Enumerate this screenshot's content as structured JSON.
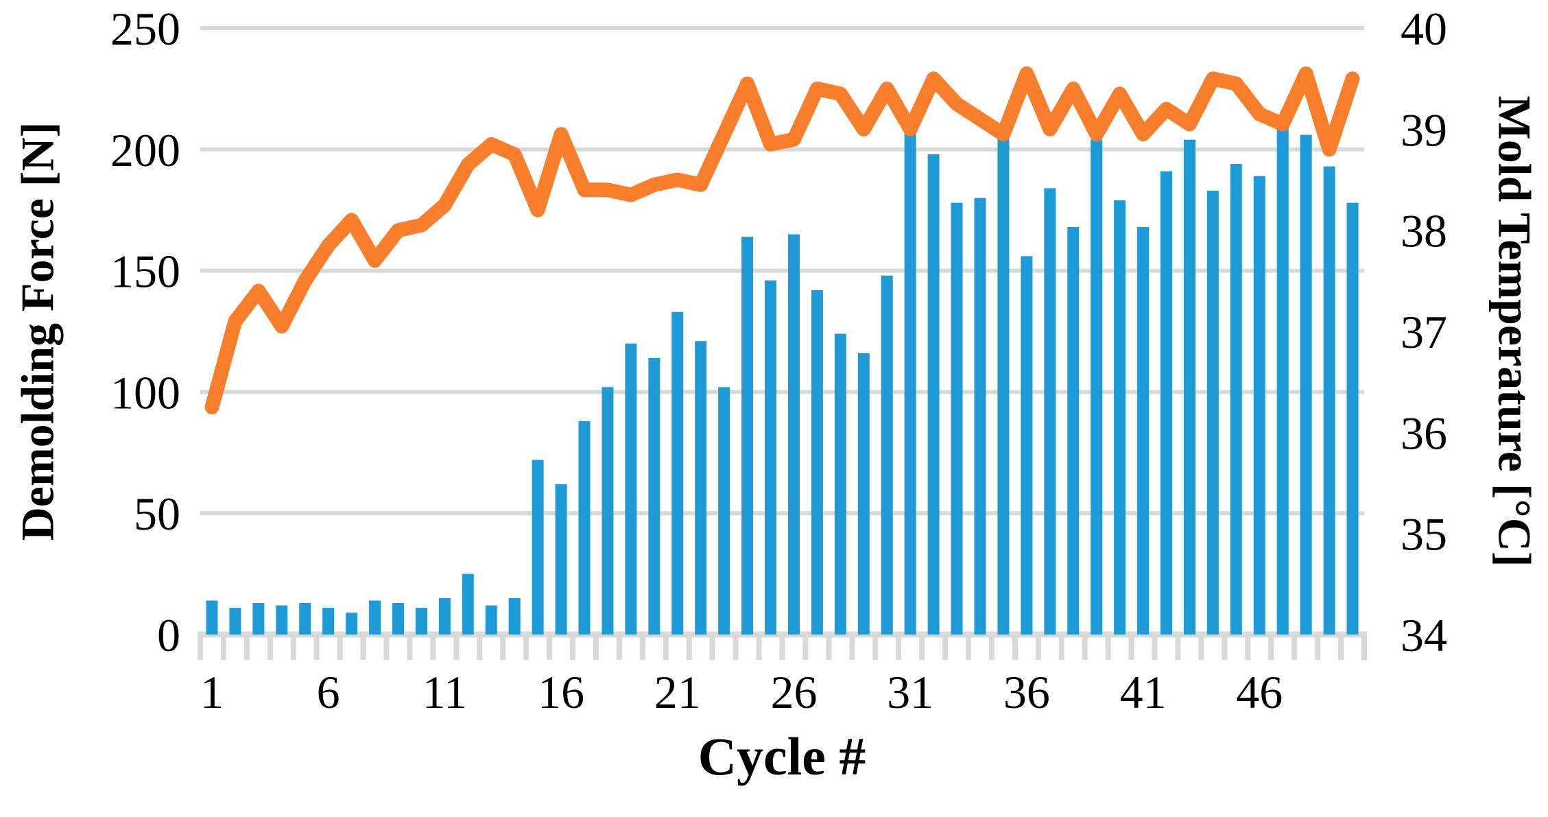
{
  "chart_data": {
    "type": "bar",
    "subtype": "combo-bar-line-dual-axis",
    "title": "",
    "xlabel": "Cycle #",
    "ylabel_left": "Demolding Force [N]",
    "ylabel_right": "Mold Temperature [°C]",
    "x_tick_labels": [
      1,
      6,
      11,
      16,
      21,
      26,
      31,
      36,
      41,
      46
    ],
    "left_axis_ticks": [
      250,
      200,
      150,
      100,
      50,
      0
    ],
    "right_axis_ticks": [
      40,
      39,
      38,
      37,
      36,
      35,
      34
    ],
    "left_axis_range": [
      0,
      250
    ],
    "right_axis_range": [
      34,
      40
    ],
    "grid": "horizontal-on",
    "legend_position": "none",
    "categories": [
      1,
      2,
      3,
      4,
      5,
      6,
      7,
      8,
      9,
      10,
      11,
      12,
      13,
      14,
      15,
      16,
      17,
      18,
      19,
      20,
      21,
      22,
      23,
      24,
      25,
      26,
      27,
      28,
      29,
      30,
      31,
      32,
      33,
      34,
      35,
      36,
      37,
      38,
      39,
      40,
      41,
      42,
      43,
      44,
      45,
      46,
      47,
      48,
      49,
      50
    ],
    "series": [
      {
        "name": "Demolding Force [N]",
        "type": "bar",
        "axis": "left",
        "values": [
          14,
          11,
          13,
          12,
          13,
          11,
          9,
          14,
          13,
          11,
          15,
          25,
          12,
          15,
          72,
          62,
          88,
          102,
          120,
          114,
          133,
          121,
          102,
          164,
          146,
          165,
          142,
          124,
          116,
          148,
          208,
          198,
          178,
          180,
          210,
          156,
          184,
          168,
          204,
          179,
          168,
          191,
          204,
          183,
          194,
          189,
          209,
          206,
          193,
          178
        ]
      },
      {
        "name": "Mold Temperature [°C]",
        "type": "line",
        "axis": "right",
        "values": [
          36.25,
          37.1,
          37.4,
          37.05,
          37.5,
          37.85,
          38.1,
          37.7,
          38.0,
          38.05,
          38.25,
          38.65,
          38.85,
          38.75,
          38.2,
          38.95,
          38.4,
          38.4,
          38.35,
          38.45,
          38.5,
          38.45,
          38.95,
          39.45,
          38.85,
          38.9,
          39.4,
          39.35,
          39.0,
          39.4,
          39.0,
          39.5,
          39.25,
          39.1,
          38.95,
          39.55,
          39.0,
          39.4,
          38.95,
          39.35,
          38.95,
          39.2,
          39.05,
          39.5,
          39.45,
          39.15,
          39.05,
          39.55,
          38.8,
          39.5
        ]
      }
    ],
    "colors": {
      "bar": "#1E9BD7",
      "line": "#F87E2C",
      "grid": "#D9D9D9",
      "axis_line": "#D9D9D9",
      "text": "#000000",
      "background": "#FFFFFF"
    }
  }
}
